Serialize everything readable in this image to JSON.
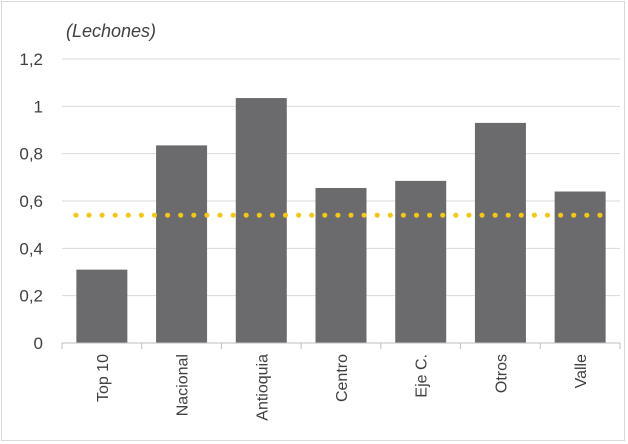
{
  "chart_data": {
    "type": "bar",
    "title": "",
    "unit_label": "(Lechones)",
    "xlabel": "",
    "ylabel": "",
    "categories": [
      "Top 10",
      "Nacional",
      "Antioquia",
      "Centro",
      "Eje C.",
      "Otros",
      "Valle"
    ],
    "series": [
      {
        "values": [
          0.31,
          0.835,
          1.035,
          0.655,
          0.685,
          0.93,
          0.64
        ]
      }
    ],
    "reference_line": {
      "value": 0.54,
      "style": "dotted"
    },
    "ylim": [
      0,
      1.2
    ],
    "yticks": [
      "0",
      "0,2",
      "0,4",
      "0,6",
      "0,8",
      "1",
      "1,2"
    ],
    "ytick_values": [
      0,
      0.2,
      0.4,
      0.6,
      0.8,
      1.0,
      1.2
    ],
    "grid": true,
    "legend": "none",
    "colors": {
      "bar": "#6b6b6e",
      "reference_line": "#f5c518",
      "grid": "#d9d9d9",
      "axis": "#bfbfbf"
    }
  }
}
